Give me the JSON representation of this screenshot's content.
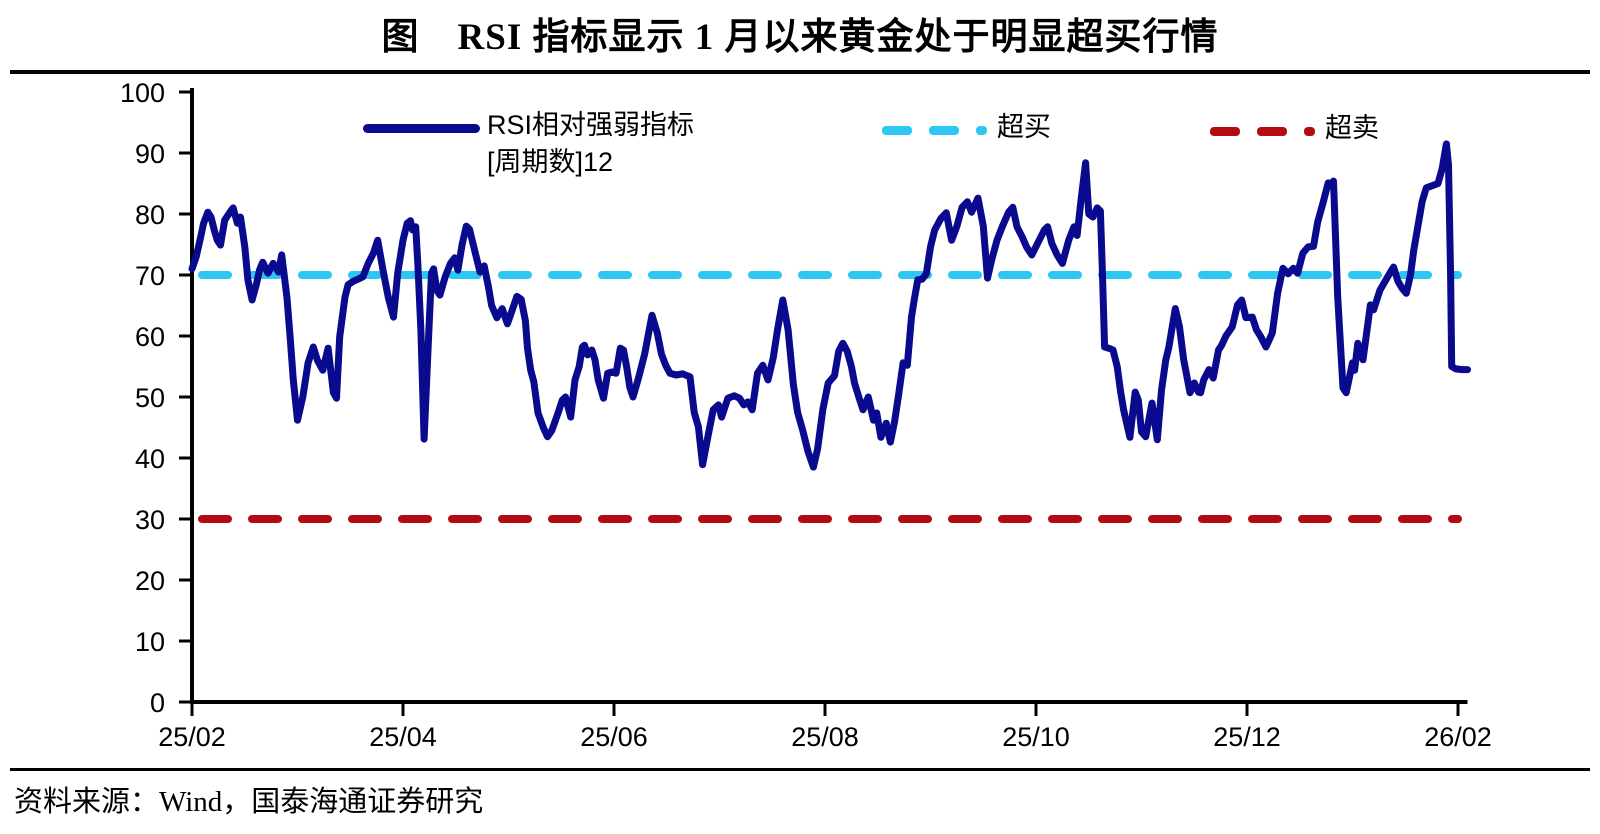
{
  "title": "图　RSI 指标显示 1 月以来黄金处于明显超买行情",
  "source": "资料来源：Wind，国泰海通证券研究",
  "legend": {
    "series_label_line1": "RSI相对强弱指标",
    "series_label_line2": "[周期数]12",
    "overbought_label": "超买",
    "oversold_label": "超卖"
  },
  "colors": {
    "series": "#0a0a8f",
    "overbought": "#2cc7f2",
    "oversold": "#b20b10",
    "axis": "#000000"
  },
  "chart_data": {
    "type": "line",
    "title": "图 RSI 指标显示 1 月以来黄金处于明显超买行情",
    "xlabel": "",
    "ylabel": "",
    "grid": false,
    "legend_position": "top",
    "ylim": [
      0,
      100
    ],
    "y_ticks": [
      0,
      10,
      20,
      30,
      40,
      50,
      60,
      70,
      80,
      90,
      100
    ],
    "x_ticks": [
      "25/02",
      "25/04",
      "25/06",
      "25/08",
      "25/10",
      "25/12",
      "26/02"
    ],
    "x_tick_month_index": [
      0,
      2,
      4,
      6,
      8,
      10,
      12
    ],
    "xlim_months": [
      0,
      12.09
    ],
    "overbought_level": 70,
    "oversold_level": 30,
    "series": [
      {
        "name": "RSI相对强弱指标[周期数]12",
        "points": [
          [
            0,
            71
          ],
          [
            0.04,
            73
          ],
          [
            0.08,
            76
          ],
          [
            0.11,
            78.5
          ],
          [
            0.15,
            80.3
          ],
          [
            0.18,
            79.5
          ],
          [
            0.21,
            77.4
          ],
          [
            0.24,
            75.7
          ],
          [
            0.27,
            74.9
          ],
          [
            0.31,
            79
          ],
          [
            0.36,
            80.3
          ],
          [
            0.39,
            81
          ],
          [
            0.43,
            78.5
          ],
          [
            0.46,
            79.5
          ],
          [
            0.5,
            74.6
          ],
          [
            0.53,
            69.2
          ],
          [
            0.57,
            65.9
          ],
          [
            0.61,
            68.5
          ],
          [
            0.64,
            70.8
          ],
          [
            0.67,
            72.1
          ],
          [
            0.72,
            70.3
          ],
          [
            0.77,
            71.9
          ],
          [
            0.82,
            70.5
          ],
          [
            0.85,
            73.3
          ],
          [
            0.9,
            66.4
          ],
          [
            0.93,
            59.9
          ],
          [
            0.96,
            52.8
          ],
          [
            1,
            46.2
          ],
          [
            1.05,
            50
          ],
          [
            1.1,
            55.6
          ],
          [
            1.15,
            58.2
          ],
          [
            1.19,
            56
          ],
          [
            1.24,
            54.4
          ],
          [
            1.29,
            58
          ],
          [
            1.34,
            50.7
          ],
          [
            1.37,
            49.8
          ],
          [
            1.4,
            59.9
          ],
          [
            1.45,
            66.4
          ],
          [
            1.48,
            68.4
          ],
          [
            1.53,
            69
          ],
          [
            1.56,
            69.2
          ],
          [
            1.62,
            69.7
          ],
          [
            1.67,
            71.9
          ],
          [
            1.72,
            73.6
          ],
          [
            1.76,
            75.7
          ],
          [
            1.81,
            70.8
          ],
          [
            1.86,
            66.4
          ],
          [
            1.91,
            63.1
          ],
          [
            1.95,
            70.3
          ],
          [
            2,
            75.7
          ],
          [
            2.04,
            78.5
          ],
          [
            2.07,
            78.9
          ],
          [
            2.09,
            77.4
          ],
          [
            2.12,
            77.9
          ],
          [
            2.14,
            71.9
          ],
          [
            2.17,
            61
          ],
          [
            2.2,
            43.1
          ],
          [
            2.24,
            58.8
          ],
          [
            2.27,
            70.3
          ],
          [
            2.29,
            71
          ],
          [
            2.32,
            67.5
          ],
          [
            2.35,
            66.7
          ],
          [
            2.4,
            69.7
          ],
          [
            2.45,
            71.9
          ],
          [
            2.49,
            72.8
          ],
          [
            2.52,
            70.8
          ],
          [
            2.56,
            75
          ],
          [
            2.6,
            78
          ],
          [
            2.63,
            77.5
          ],
          [
            2.68,
            74
          ],
          [
            2.73,
            70.5
          ],
          [
            2.77,
            71.5
          ],
          [
            2.81,
            68
          ],
          [
            2.84,
            65
          ],
          [
            2.89,
            63
          ],
          [
            2.94,
            64.5
          ],
          [
            2.99,
            62
          ],
          [
            3.03,
            64
          ],
          [
            3.08,
            66.5
          ],
          [
            3.12,
            66
          ],
          [
            3.16,
            62.5
          ],
          [
            3.18,
            58
          ],
          [
            3.21,
            54.4
          ],
          [
            3.24,
            52.5
          ],
          [
            3.28,
            47.4
          ],
          [
            3.33,
            45
          ],
          [
            3.37,
            43.5
          ],
          [
            3.41,
            44.5
          ],
          [
            3.47,
            47.4
          ],
          [
            3.51,
            49.5
          ],
          [
            3.54,
            50
          ],
          [
            3.57,
            48
          ],
          [
            3.59,
            46.7
          ],
          [
            3.63,
            52.8
          ],
          [
            3.67,
            55
          ],
          [
            3.7,
            58.2
          ],
          [
            3.72,
            58.5
          ],
          [
            3.75,
            56.9
          ],
          [
            3.79,
            57.7
          ],
          [
            3.82,
            56.1
          ],
          [
            3.85,
            52.8
          ],
          [
            3.9,
            49.8
          ],
          [
            3.94,
            53.9
          ],
          [
            3.98,
            54.1
          ],
          [
            4.02,
            53.9
          ],
          [
            4.06,
            58
          ],
          [
            4.09,
            57.7
          ],
          [
            4.12,
            54.9
          ],
          [
            4.15,
            51.6
          ],
          [
            4.18,
            50
          ],
          [
            4.23,
            53
          ],
          [
            4.29,
            57
          ],
          [
            4.36,
            63.4
          ],
          [
            4.41,
            60.5
          ],
          [
            4.45,
            57
          ],
          [
            4.49,
            55.2
          ],
          [
            4.53,
            53.9
          ],
          [
            4.59,
            53.6
          ],
          [
            4.65,
            53.8
          ],
          [
            4.72,
            53.3
          ],
          [
            4.76,
            47.5
          ],
          [
            4.8,
            45.1
          ],
          [
            4.84,
            38.9
          ],
          [
            4.89,
            43.5
          ],
          [
            4.94,
            47.9
          ],
          [
            4.99,
            48.7
          ],
          [
            5.02,
            46.7
          ],
          [
            5.08,
            49.8
          ],
          [
            5.14,
            50.2
          ],
          [
            5.19,
            49.8
          ],
          [
            5.23,
            48.7
          ],
          [
            5.27,
            49.2
          ],
          [
            5.31,
            47.9
          ],
          [
            5.36,
            53.9
          ],
          [
            5.41,
            55.2
          ],
          [
            5.46,
            52.8
          ],
          [
            5.51,
            56.5
          ],
          [
            5.55,
            61
          ],
          [
            5.6,
            65.9
          ],
          [
            5.65,
            61
          ],
          [
            5.7,
            52
          ],
          [
            5.74,
            47.5
          ],
          [
            5.79,
            44.5
          ],
          [
            5.84,
            41
          ],
          [
            5.89,
            38.5
          ],
          [
            5.93,
            41.5
          ],
          [
            5.98,
            48
          ],
          [
            6.03,
            52.3
          ],
          [
            6.09,
            53.5
          ],
          [
            6.13,
            57.5
          ],
          [
            6.17,
            58.8
          ],
          [
            6.21,
            57.5
          ],
          [
            6.25,
            55
          ],
          [
            6.28,
            52.3
          ],
          [
            6.32,
            50
          ],
          [
            6.36,
            47.9
          ],
          [
            6.41,
            50
          ],
          [
            6.46,
            46.2
          ],
          [
            6.49,
            47.4
          ],
          [
            6.53,
            43.4
          ],
          [
            6.58,
            45.7
          ],
          [
            6.62,
            42.6
          ],
          [
            6.66,
            46
          ],
          [
            6.7,
            50.7
          ],
          [
            6.74,
            55.6
          ],
          [
            6.78,
            55.2
          ],
          [
            6.82,
            63.1
          ],
          [
            6.85,
            66.4
          ],
          [
            6.88,
            69.2
          ],
          [
            6.92,
            69.3
          ],
          [
            6.96,
            70.2
          ],
          [
            7,
            74.6
          ],
          [
            7.04,
            77.4
          ],
          [
            7.1,
            79.3
          ],
          [
            7.15,
            80.2
          ],
          [
            7.2,
            75.7
          ],
          [
            7.25,
            78
          ],
          [
            7.3,
            81.1
          ],
          [
            7.35,
            82
          ],
          [
            7.39,
            80.3
          ],
          [
            7.45,
            82.6
          ],
          [
            7.5,
            78
          ],
          [
            7.54,
            69.5
          ],
          [
            7.58,
            72.5
          ],
          [
            7.63,
            75.7
          ],
          [
            7.68,
            77.9
          ],
          [
            7.74,
            80.3
          ],
          [
            7.78,
            81.1
          ],
          [
            7.82,
            77.9
          ],
          [
            7.87,
            76.2
          ],
          [
            7.91,
            74.6
          ],
          [
            7.96,
            73.3
          ],
          [
            8.03,
            75.7
          ],
          [
            8.08,
            77.4
          ],
          [
            8.11,
            77.9
          ],
          [
            8.15,
            75.2
          ],
          [
            8.2,
            73.3
          ],
          [
            8.25,
            71.9
          ],
          [
            8.31,
            75.7
          ],
          [
            8.36,
            77.9
          ],
          [
            8.39,
            76.5
          ],
          [
            8.43,
            82.8
          ],
          [
            8.47,
            88.4
          ],
          [
            8.5,
            80
          ],
          [
            8.54,
            79.5
          ],
          [
            8.58,
            81
          ],
          [
            8.61,
            80.5
          ],
          [
            8.63,
            70
          ],
          [
            8.65,
            58.2
          ],
          [
            8.69,
            58
          ],
          [
            8.73,
            57.7
          ],
          [
            8.77,
            55
          ],
          [
            8.8,
            51.1
          ],
          [
            8.83,
            47.9
          ],
          [
            8.89,
            43.4
          ],
          [
            8.94,
            50.8
          ],
          [
            8.97,
            49.5
          ],
          [
            9,
            44.3
          ],
          [
            9.04,
            43.5
          ],
          [
            9.1,
            49
          ],
          [
            9.15,
            43
          ],
          [
            9.19,
            51.1
          ],
          [
            9.23,
            56.1
          ],
          [
            9.26,
            58.2
          ],
          [
            9.32,
            64.5
          ],
          [
            9.36,
            61.5
          ],
          [
            9.4,
            56.1
          ],
          [
            9.46,
            50.7
          ],
          [
            9.5,
            52.3
          ],
          [
            9.54,
            50.8
          ],
          [
            9.56,
            50.7
          ],
          [
            9.59,
            52.8
          ],
          [
            9.64,
            54.5
          ],
          [
            9.68,
            53.1
          ],
          [
            9.73,
            57.7
          ],
          [
            9.76,
            58.5
          ],
          [
            9.8,
            60
          ],
          [
            9.86,
            61.5
          ],
          [
            9.91,
            65.1
          ],
          [
            9.95,
            65.9
          ],
          [
            9.99,
            63
          ],
          [
            10.05,
            63.1
          ],
          [
            10.09,
            61
          ],
          [
            10.13,
            59.9
          ],
          [
            10.18,
            58.2
          ],
          [
            10.24,
            60.5
          ],
          [
            10.29,
            67
          ],
          [
            10.34,
            71.1
          ],
          [
            10.39,
            70.2
          ],
          [
            10.44,
            71.1
          ],
          [
            10.48,
            70.3
          ],
          [
            10.53,
            73.6
          ],
          [
            10.58,
            74.6
          ],
          [
            10.63,
            74.7
          ],
          [
            10.67,
            78.7
          ],
          [
            10.72,
            81.8
          ],
          [
            10.77,
            85.1
          ],
          [
            10.79,
            84.6
          ],
          [
            10.82,
            85.4
          ],
          [
            10.86,
            66.4
          ],
          [
            10.91,
            51.5
          ],
          [
            10.94,
            50.7
          ],
          [
            11,
            55.6
          ],
          [
            11.02,
            54.4
          ],
          [
            11.05,
            58.8
          ],
          [
            11.1,
            56.1
          ],
          [
            11.17,
            65.1
          ],
          [
            11.2,
            64.3
          ],
          [
            11.26,
            67.5
          ],
          [
            11.31,
            69
          ],
          [
            11.36,
            70.5
          ],
          [
            11.39,
            71.3
          ],
          [
            11.43,
            69
          ],
          [
            11.47,
            67.8
          ],
          [
            11.51,
            67
          ],
          [
            11.55,
            70
          ],
          [
            11.58,
            74
          ],
          [
            11.62,
            78
          ],
          [
            11.66,
            82
          ],
          [
            11.7,
            84.3
          ],
          [
            11.75,
            84.6
          ],
          [
            11.81,
            85
          ],
          [
            11.85,
            87.5
          ],
          [
            11.89,
            91.5
          ],
          [
            11.91,
            88
          ],
          [
            11.93,
            70
          ],
          [
            11.94,
            55
          ],
          [
            11.98,
            54.6
          ],
          [
            12.04,
            54.5
          ],
          [
            12.09,
            54.5
          ]
        ]
      }
    ]
  }
}
